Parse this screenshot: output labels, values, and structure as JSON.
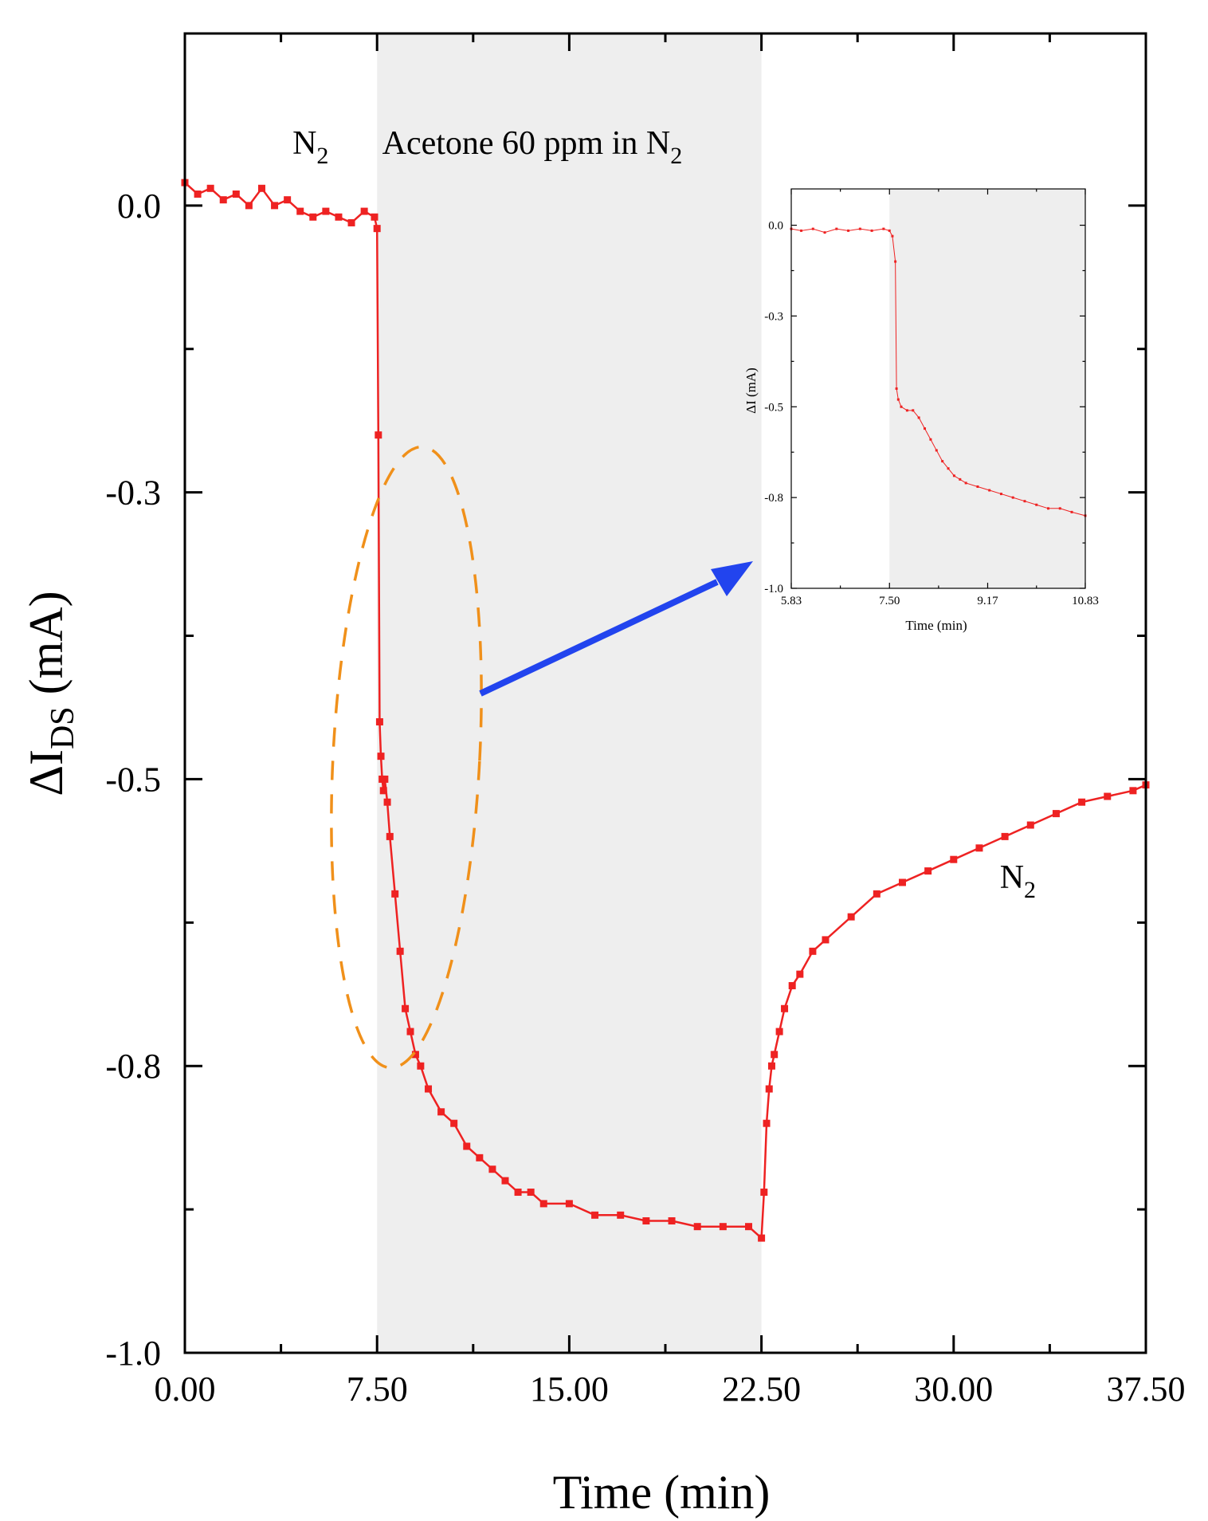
{
  "chart_data": [
    {
      "type": "scatter",
      "title": "",
      "xlabel": "Time (min)",
      "ylabel": "ΔI",
      "ylabel_sub": "DS",
      "ylabel_unit": " (mA)",
      "xlim": [
        0,
        37.5
      ],
      "ylim": [
        -1.0,
        0.15
      ],
      "xticks": [
        "0.00",
        "7.50",
        "15.00",
        "22.50",
        "30.00",
        "37.50"
      ],
      "xtick_values": [
        0,
        7.5,
        15,
        22.5,
        30,
        37.5
      ],
      "yticks": [
        "0.0",
        "-0.3",
        "-0.5",
        "-0.8",
        "-1.0"
      ],
      "ytick_values": [
        0.0,
        -0.25,
        -0.5,
        -0.75,
        -1.0
      ],
      "shaded_region": [
        7.5,
        22.5
      ],
      "shaded_color": "#eeeeee",
      "series_color": "#ee2222",
      "annotations": [
        {
          "text": "N",
          "sub": "2",
          "x": 4.2,
          "y": 0.045
        },
        {
          "text": "Acetone  60 ppm in N",
          "sub": "2",
          "x": 7.7,
          "y": 0.045
        },
        {
          "text": "N",
          "sub": "2",
          "x": 31.8,
          "y": -0.595
        }
      ],
      "series": [
        {
          "name": "ΔIDS",
          "x": [
            0,
            0.5,
            1,
            1.5,
            2,
            2.5,
            3,
            3.5,
            4,
            4.5,
            5,
            5.5,
            6,
            6.5,
            7,
            7.4,
            7.5,
            7.55,
            7.6,
            7.65,
            7.7,
            7.75,
            7.8,
            7.9,
            8.0,
            8.2,
            8.4,
            8.6,
            8.8,
            9.0,
            9.2,
            9.5,
            10,
            10.5,
            11,
            11.5,
            12,
            12.5,
            13,
            13.5,
            14,
            15,
            16,
            17,
            18,
            19,
            20,
            21,
            22,
            22.5,
            22.6,
            22.7,
            22.8,
            22.9,
            23.0,
            23.2,
            23.4,
            23.7,
            24,
            24.5,
            25,
            26,
            27,
            28,
            29,
            30,
            31,
            32,
            33,
            34,
            35,
            36,
            37,
            37.5
          ],
          "y": [
            0.02,
            0.01,
            0.015,
            0.005,
            0.01,
            0.0,
            0.015,
            0.0,
            0.005,
            -0.005,
            -0.01,
            -0.005,
            -0.01,
            -0.015,
            -0.005,
            -0.01,
            -0.02,
            -0.2,
            -0.45,
            -0.48,
            -0.5,
            -0.51,
            -0.5,
            -0.52,
            -0.55,
            -0.6,
            -0.65,
            -0.7,
            -0.72,
            -0.74,
            -0.75,
            -0.77,
            -0.79,
            -0.8,
            -0.82,
            -0.83,
            -0.84,
            -0.85,
            -0.86,
            -0.86,
            -0.87,
            -0.87,
            -0.88,
            -0.88,
            -0.885,
            -0.885,
            -0.89,
            -0.89,
            -0.89,
            -0.9,
            -0.86,
            -0.8,
            -0.77,
            -0.75,
            -0.74,
            -0.72,
            -0.7,
            -0.68,
            -0.67,
            -0.65,
            -0.64,
            -0.62,
            -0.6,
            -0.59,
            -0.58,
            -0.57,
            -0.56,
            -0.55,
            -0.54,
            -0.53,
            -0.52,
            -0.515,
            -0.51,
            -0.505
          ]
        }
      ]
    },
    {
      "type": "scatter",
      "title": "",
      "xlabel": "Time (min)",
      "ylabel": "ΔI (mA)",
      "xlim": [
        5.83,
        10.83
      ],
      "ylim": [
        -1.0,
        0.1
      ],
      "xticks": [
        "5.83",
        "7.50",
        "9.17",
        "10.83"
      ],
      "xtick_values": [
        5.83,
        7.5,
        9.17,
        10.83
      ],
      "yticks": [
        "0.0",
        "-0.3",
        "-0.5",
        "-0.8",
        "-1.0"
      ],
      "ytick_values": [
        0.0,
        -0.25,
        -0.5,
        -0.75,
        -1.0
      ],
      "shaded_region": [
        7.5,
        10.83
      ],
      "series": [
        {
          "name": "ΔI",
          "x": [
            5.83,
            6.0,
            6.2,
            6.4,
            6.6,
            6.8,
            7.0,
            7.2,
            7.4,
            7.5,
            7.55,
            7.6,
            7.62,
            7.65,
            7.7,
            7.8,
            7.9,
            8.0,
            8.1,
            8.2,
            8.3,
            8.4,
            8.5,
            8.6,
            8.7,
            8.8,
            9.0,
            9.2,
            9.4,
            9.6,
            9.8,
            10.0,
            10.2,
            10.4,
            10.6,
            10.83
          ],
          "y": [
            -0.01,
            -0.015,
            -0.01,
            -0.02,
            -0.01,
            -0.015,
            -0.01,
            -0.015,
            -0.01,
            -0.015,
            -0.03,
            -0.1,
            -0.45,
            -0.48,
            -0.5,
            -0.51,
            -0.51,
            -0.53,
            -0.56,
            -0.59,
            -0.62,
            -0.65,
            -0.67,
            -0.69,
            -0.7,
            -0.71,
            -0.72,
            -0.73,
            -0.74,
            -0.75,
            -0.76,
            -0.77,
            -0.78,
            -0.78,
            -0.79,
            -0.8
          ]
        }
      ]
    }
  ]
}
